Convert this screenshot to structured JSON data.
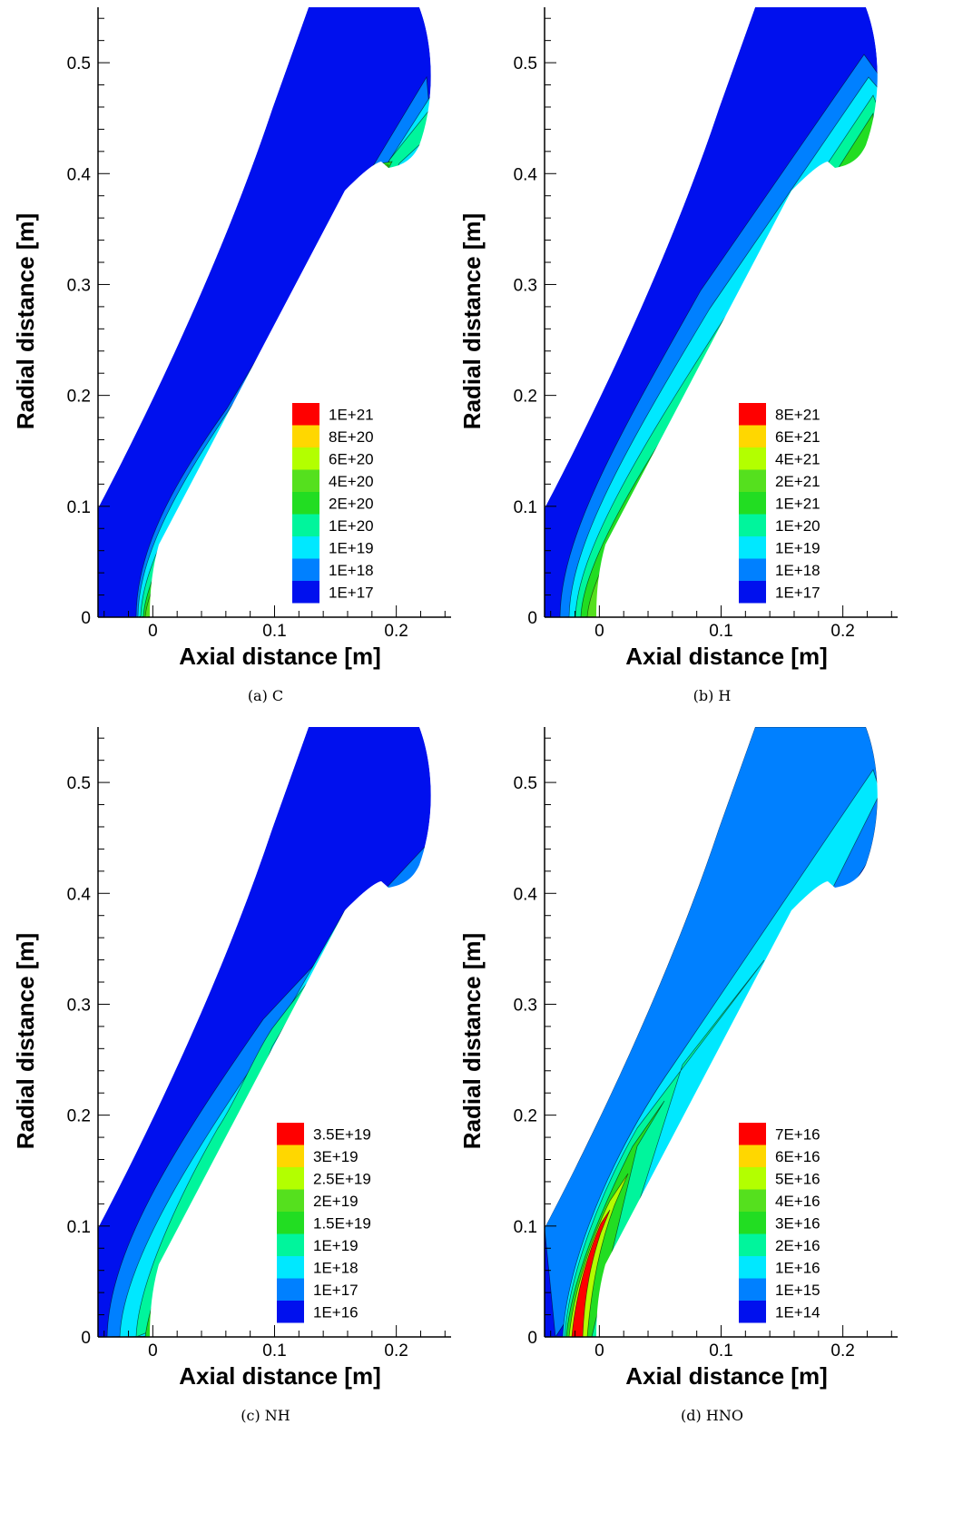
{
  "chart_data": [
    {
      "type": "contour",
      "caption": "(a) C",
      "xlabel": "Axial distance [m]",
      "ylabel": "Radial distance [m]",
      "xlim": [
        -0.045,
        0.245
      ],
      "ylim": [
        0,
        0.55
      ],
      "xticks": [
        "0",
        "0.1",
        "0.2"
      ],
      "yticks": [
        "0",
        "0.1",
        "0.2",
        "0.3",
        "0.4",
        "0.5"
      ],
      "legend_levels": [
        "1E+21",
        "8E+20",
        "6E+20",
        "4E+20",
        "2E+20",
        "1E+20",
        "1E+19",
        "1E+18",
        "1E+17"
      ],
      "legend_position": "lower-right"
    },
    {
      "type": "contour",
      "caption": "(b) H",
      "xlabel": "Axial distance [m]",
      "ylabel": "Radial distance [m]",
      "xlim": [
        -0.045,
        0.245
      ],
      "ylim": [
        0,
        0.55
      ],
      "xticks": [
        "0",
        "0.1",
        "0.2"
      ],
      "yticks": [
        "0",
        "0.1",
        "0.2",
        "0.3",
        "0.4",
        "0.5"
      ],
      "legend_levels": [
        "8E+21",
        "6E+21",
        "4E+21",
        "2E+21",
        "1E+21",
        "1E+20",
        "1E+19",
        "1E+18",
        "1E+17"
      ],
      "legend_position": "lower-right"
    },
    {
      "type": "contour",
      "caption": "(c) NH",
      "xlabel": "Axial distance [m]",
      "ylabel": "Radial distance [m]",
      "xlim": [
        -0.045,
        0.245
      ],
      "ylim": [
        0,
        0.55
      ],
      "xticks": [
        "0",
        "0.1",
        "0.2"
      ],
      "yticks": [
        "0",
        "0.1",
        "0.2",
        "0.3",
        "0.4",
        "0.5"
      ],
      "legend_levels": [
        "3.5E+19",
        "3E+19",
        "2.5E+19",
        "2E+19",
        "1.5E+19",
        "1E+19",
        "1E+18",
        "1E+17",
        "1E+16"
      ],
      "legend_position": "lower-right"
    },
    {
      "type": "contour",
      "caption": "(d) HNO",
      "xlabel": "Axial distance [m]",
      "ylabel": "Radial distance [m]",
      "xlim": [
        -0.045,
        0.245
      ],
      "ylim": [
        0,
        0.55
      ],
      "xticks": [
        "0",
        "0.1",
        "0.2"
      ],
      "yticks": [
        "0",
        "0.1",
        "0.2",
        "0.3",
        "0.4",
        "0.5"
      ],
      "legend_levels": [
        "7E+16",
        "6E+16",
        "5E+16",
        "4E+16",
        "3E+16",
        "2E+16",
        "1E+16",
        "1E+15",
        "1E+14"
      ],
      "legend_position": "lower-right"
    }
  ],
  "colormap": [
    "#ff0000",
    "#ff6a00",
    "#ffd700",
    "#b3ff00",
    "#55e01e",
    "#22dd22",
    "#00f59c",
    "#00e8ff",
    "#0080ff",
    "#0010ee"
  ]
}
